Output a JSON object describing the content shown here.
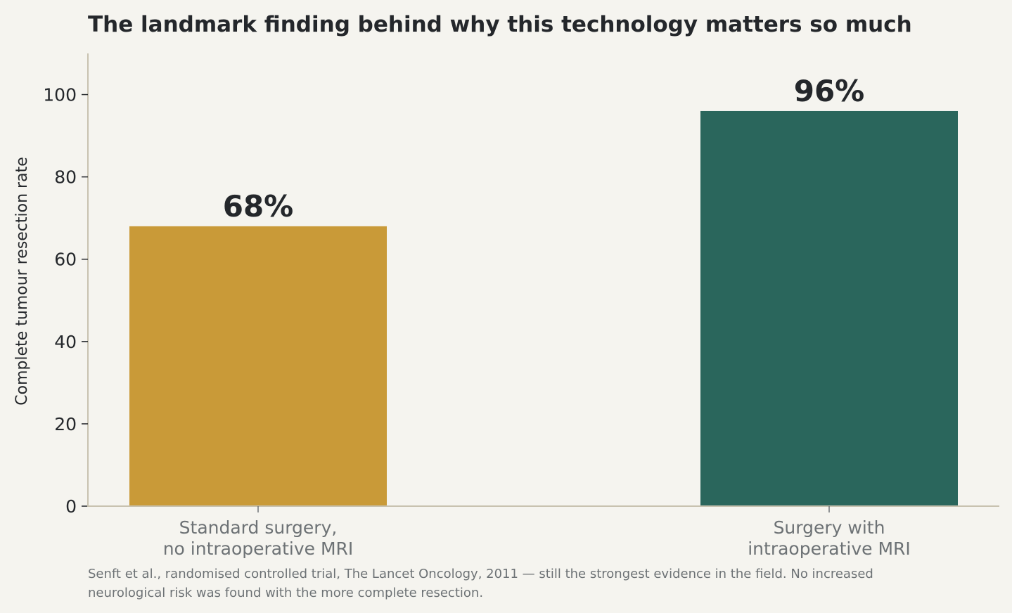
{
  "chart_data": {
    "type": "bar",
    "title": "The landmark finding behind why this technology matters so much",
    "ylabel": "Complete tumour resection rate",
    "xlabel": "",
    "ylim": [
      0,
      110
    ],
    "yticks": [
      0,
      20,
      40,
      60,
      80,
      100
    ],
    "categories": [
      [
        "Standard surgery,",
        "no intraoperative MRI"
      ],
      [
        "Surgery with",
        "intraoperative MRI"
      ]
    ],
    "values": [
      68,
      96
    ],
    "data_labels": [
      "68%",
      "96%"
    ],
    "colors": [
      "#c99a38",
      "#2a665c"
    ],
    "grid": false,
    "legend": "none"
  },
  "footnote": [
    "Senft et al., randomised controlled trial, The Lancet Oncology, 2011 — still the strongest evidence in the field. No increased",
    "neurological risk was found with the more complete resection."
  ]
}
